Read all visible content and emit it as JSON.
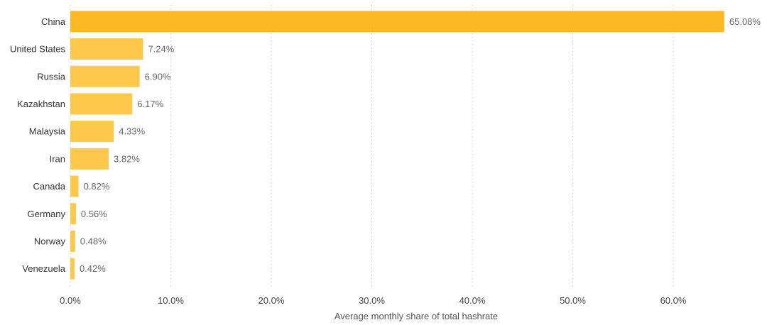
{
  "chart_data": {
    "type": "bar",
    "orientation": "horizontal",
    "categories": [
      "China",
      "United States",
      "Russia",
      "Kazakhstan",
      "Malaysia",
      "Iran",
      "Canada",
      "Germany",
      "Norway",
      "Venezuela"
    ],
    "values": [
      65.08,
      7.24,
      6.9,
      6.17,
      4.33,
      3.82,
      0.82,
      0.56,
      0.48,
      0.42
    ],
    "value_labels": [
      "65.08%",
      "7.24%",
      "6.90%",
      "6.17%",
      "4.33%",
      "3.82%",
      "0.82%",
      "0.56%",
      "0.48%",
      "0.42%"
    ],
    "xlabel": "Average monthly share of total hashrate",
    "ylabel": "",
    "xlim": [
      0,
      68
    ],
    "xticks": [
      0,
      10,
      20,
      30,
      40,
      50,
      60
    ],
    "xtick_labels": [
      "0.0%",
      "10.0%",
      "20.0%",
      "30.0%",
      "40.0%",
      "50.0%",
      "60.0%"
    ],
    "grid": "vertical dotted",
    "colors": {
      "highlight": "#FDB924",
      "bar": "#FEC84A"
    }
  }
}
